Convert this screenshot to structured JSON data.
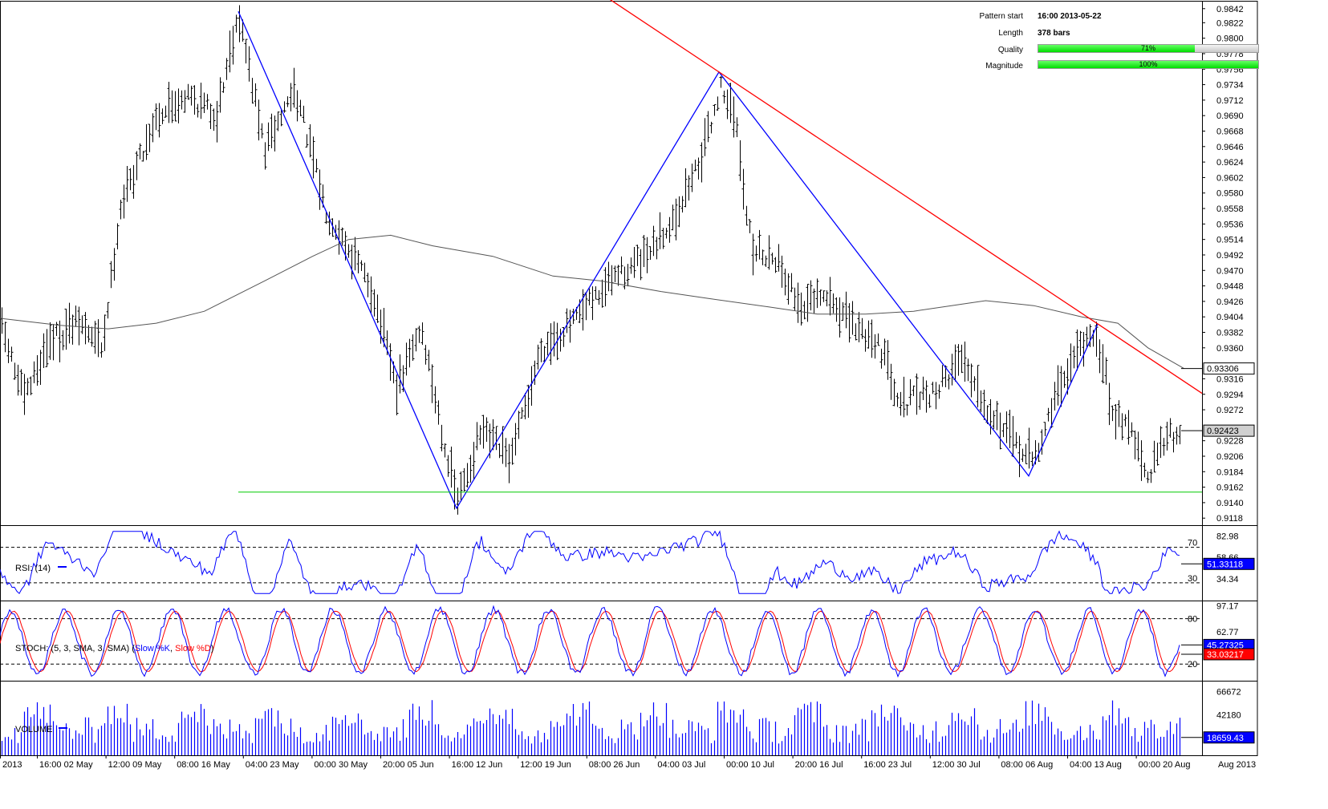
{
  "info": {
    "pattern_start_label": "Pattern start",
    "pattern_start_value": "16:00 2013-05-22",
    "length_label": "Length",
    "length_value": "378 bars",
    "quality_label": "Quality",
    "quality_pct": 71,
    "quality_text": "71%",
    "magnitude_label": "Magnitude",
    "magnitude_pct": 100,
    "magnitude_text": "100%"
  },
  "colors": {
    "price_bars": "#000000",
    "pattern_line": "#0000ff",
    "resistance_line": "#ff0000",
    "support_line": "#00cc00",
    "moving_average": "#555555",
    "rsi_line": "#0000ff",
    "stoch_k": "#0000ff",
    "stoch_d": "#ff0000",
    "volume_bars": "#0000ff",
    "current_price_bg": "#d0d0d0",
    "stoch_d_badge": "#ff0000",
    "indicator_badge": "#0000ff"
  },
  "x_axis": {
    "labels": [
      "2013",
      "16:00 02 May",
      "12:00 09 May",
      "08:00 16 May",
      "04:00 23 May",
      "00:00 30 May",
      "20:00 05 Jun",
      "16:00 12 Jun",
      "12:00 19 Jun",
      "08:00 26 Jun",
      "04:00 03 Jul",
      "00:00 10 Jul",
      "20:00 16 Jul",
      "16:00 23 Jul",
      "12:00 30 Jul",
      "08:00 06 Aug",
      "04:00 13 Aug",
      "00:00 20 Aug"
    ],
    "right_label": "Aug 2013"
  },
  "chart_data": [
    {
      "type": "bar",
      "panel": "price",
      "y_ticks": [
        "0.9842",
        "0.9822",
        "0.9800",
        "0.9778",
        "0.9756",
        "0.9734",
        "0.9712",
        "0.9690",
        "0.9668",
        "0.9646",
        "0.9624",
        "0.9602",
        "0.9580",
        "0.9558",
        "0.9536",
        "0.9514",
        "0.9492",
        "0.9470",
        "0.9448",
        "0.9426",
        "0.9404",
        "0.9382",
        "0.9360",
        "0.9316",
        "0.9294",
        "0.9272",
        "0.9228",
        "0.9206",
        "0.9184",
        "0.9162",
        "0.9140",
        "0.9118"
      ],
      "ylim": [
        0.9108,
        0.9852
      ],
      "moving_average_label": "0.93306",
      "moving_average_value": 0.93306,
      "current_price_label": "0.92423",
      "current_price_value": 0.92423,
      "support_level": 0.9155,
      "pattern_points": [
        {
          "x": "16:00 2013-05-22",
          "y": 0.9838
        },
        {
          "x": "2013-06-12",
          "y": 0.9132
        },
        {
          "x": "2013-07-05",
          "y": 0.9752
        },
        {
          "x": "2013-08-08",
          "y": 0.9178
        },
        {
          "x": "2013-08-14",
          "y": 0.9394
        }
      ],
      "resistance_points": [
        {
          "x": "2013-07-05",
          "y": 0.9752
        },
        {
          "x": "2013-08-14",
          "y": 0.9394
        }
      ]
    },
    {
      "type": "line",
      "panel": "rsi",
      "title": "RSI: (14)",
      "y_ticks": [
        "82.98",
        "58.66",
        "34.34"
      ],
      "levels": [
        "70",
        "30"
      ],
      "ylim": [
        10,
        95
      ],
      "current_label": "51.33118",
      "current_value": 51.33
    },
    {
      "type": "line",
      "panel": "stoch",
      "title_prefix": "STOCH: (5, 3, SMA, 3, SMA)",
      "k_label": "Slow %K",
      "d_label": "Slow %D",
      "y_ticks": [
        "97.17",
        "62.77"
      ],
      "levels": [
        "80",
        "20"
      ],
      "ylim": [
        -2,
        104
      ],
      "k_current_label": "45.27325",
      "k_current_value": 45.27,
      "d_current_label": "33.03217",
      "d_current_value": 33.03
    },
    {
      "type": "bar",
      "panel": "volume",
      "title": "VOLUME",
      "y_ticks": [
        "66672",
        "42180"
      ],
      "ylim": [
        0,
        78000
      ],
      "current_label": "18659.43",
      "current_value": 18659.43
    }
  ]
}
